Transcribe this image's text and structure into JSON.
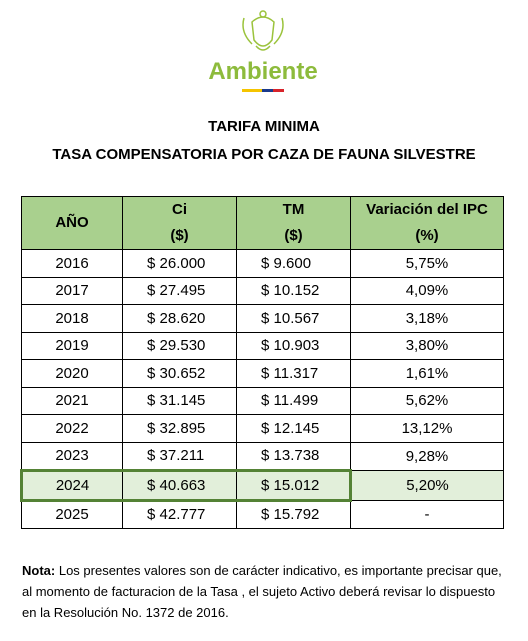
{
  "logo": {
    "text": "Ambiente"
  },
  "title": {
    "line1": "TARIFA MINIMA",
    "line2": "TASA COMPENSATORIA POR CAZA DE FAUNA SILVESTRE"
  },
  "table": {
    "header": [
      {
        "label": "AÑO"
      },
      {
        "label": "Ci",
        "unit": "($)"
      },
      {
        "label": "TM",
        "unit": "($)"
      },
      {
        "label": "Variación del IPC",
        "unit": "(%)"
      }
    ],
    "rows": [
      [
        "2016",
        "$ 26.000",
        "$ 9.600",
        "5,75%"
      ],
      [
        "2017",
        "$ 27.495",
        "$ 10.152",
        "4,09%"
      ],
      [
        "2018",
        "$ 28.620",
        "$ 10.567",
        "3,18%"
      ],
      [
        "2019",
        "$ 29.530",
        "$ 10.903",
        "3,80%"
      ],
      [
        "2020",
        "$ 30.652",
        "$ 11.317",
        "1,61%"
      ],
      [
        "2021",
        "$ 31.145",
        "$ 11.499",
        "5,62%"
      ],
      [
        "2022",
        "$ 32.895",
        "$ 12.145",
        "13,12%"
      ],
      [
        "2023",
        "$ 37.211",
        "$ 13.738",
        "9,28%"
      ],
      [
        "2024",
        "$ 40.663",
        "$ 15.012",
        "5,20%"
      ],
      [
        "2025",
        "$ 42.777",
        "$ 15.792",
        "-"
      ]
    ]
  },
  "note": {
    "label": "Nota:",
    "text": "Los presentes valores son de carácter indicativo, es importante precisar que, al momento de facturacion de la Tasa , el sujeto Activo deberá revisar lo dispuesto en la Resolución No. 1372 de 2016."
  }
}
